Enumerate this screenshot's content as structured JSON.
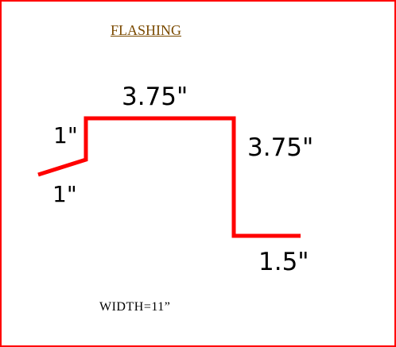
{
  "title": "FLASHING",
  "colors": {
    "border": "#ff0000",
    "profile": "#ff0000",
    "title": "#7a4a00",
    "text": "#000000"
  },
  "dimensions": {
    "top": "3.75\"",
    "right": "3.75\"",
    "bottom_flange": "1.5\"",
    "left_vertical": "1\"",
    "left_hem": "1\""
  },
  "width_label": "WIDTH=11”"
}
